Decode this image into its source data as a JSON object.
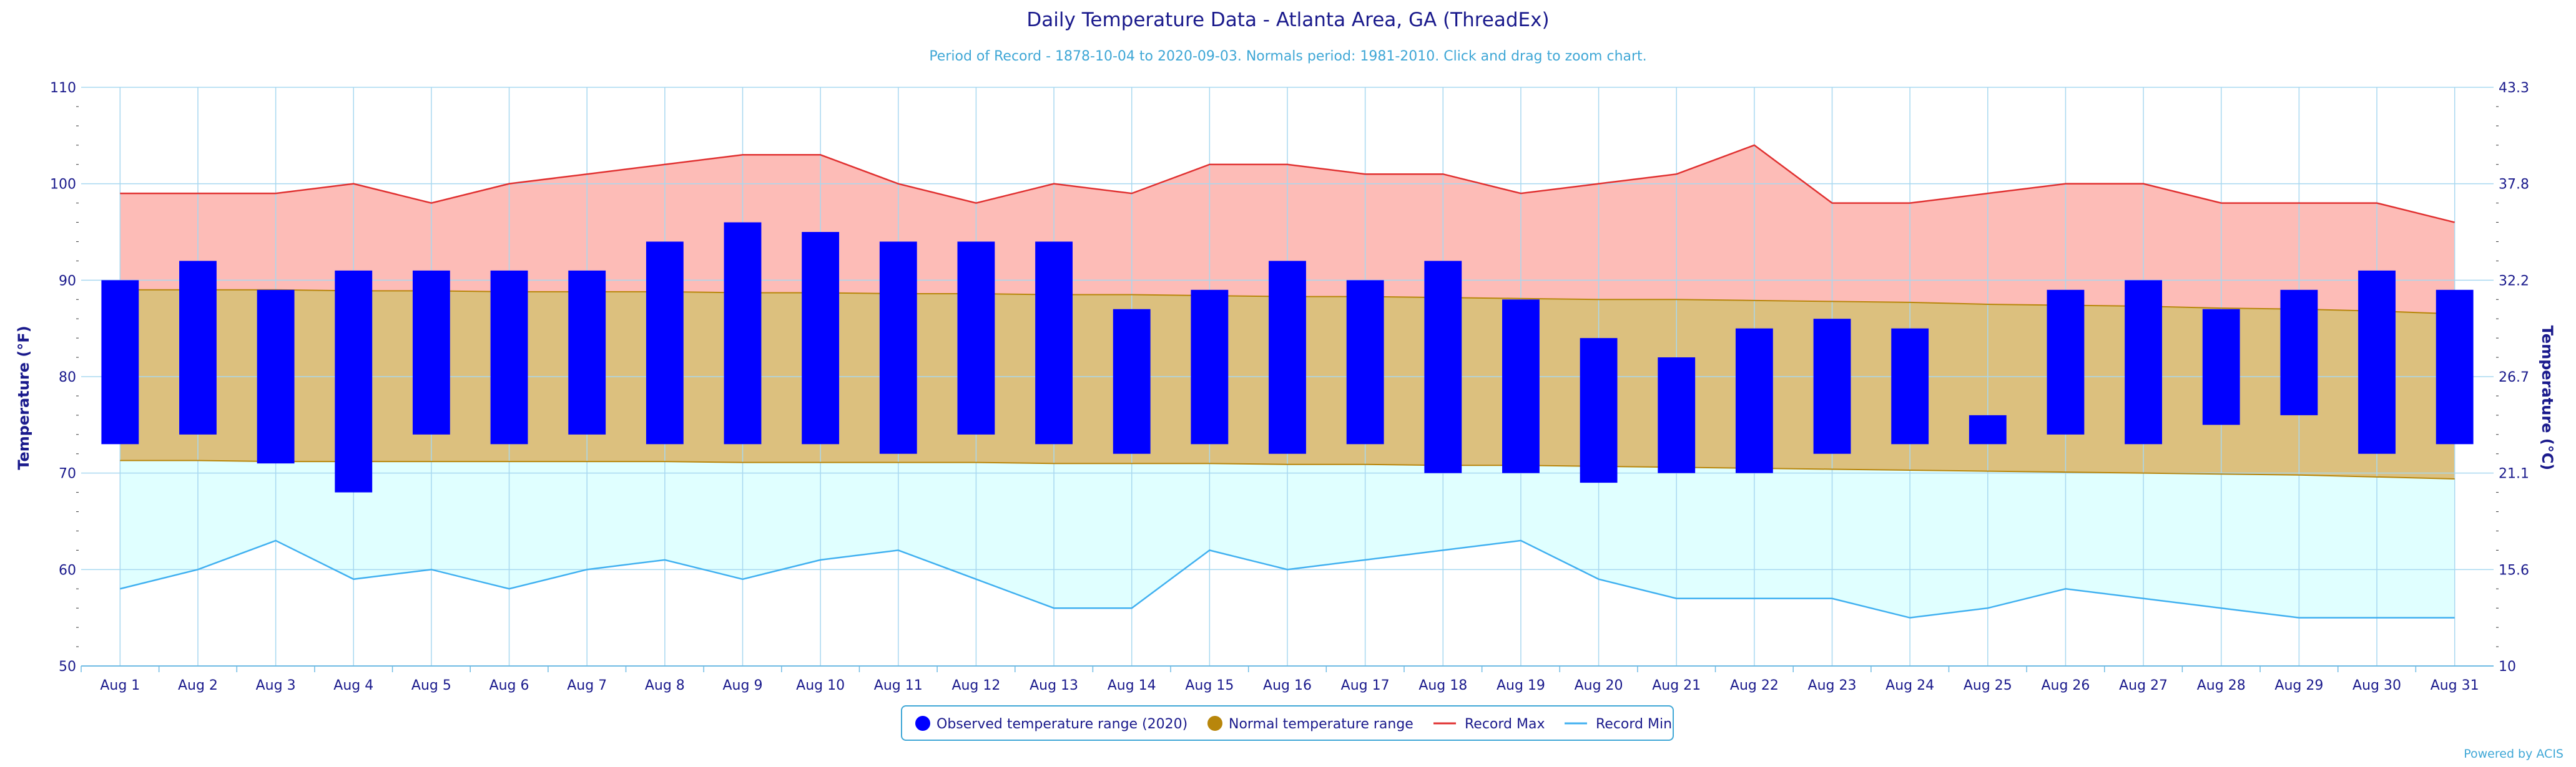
{
  "chart_data": {
    "type": "bar",
    "title": "Daily Temperature Data - Atlanta Area, GA (ThreadEx)",
    "subtitle": "Period of Record - 1878-10-04 to 2020-09-03. Normals period: 1981-2010. Click and drag to zoom chart.",
    "ylabel": "Temperature (°F)",
    "ylabel_right": "Temperature (°C)",
    "ylim": [
      50,
      110
    ],
    "y_ticks": [
      50,
      60,
      70,
      80,
      90,
      100,
      110
    ],
    "y_ticks_right": [
      "10",
      "15.6",
      "21.1",
      "26.7",
      "32.2",
      "37.8",
      "43.3"
    ],
    "grid": true,
    "legend_position": "bottom-center",
    "categories": [
      "Aug 1",
      "Aug 2",
      "Aug 3",
      "Aug 4",
      "Aug 5",
      "Aug 6",
      "Aug 7",
      "Aug 8",
      "Aug 9",
      "Aug 10",
      "Aug 11",
      "Aug 12",
      "Aug 13",
      "Aug 14",
      "Aug 15",
      "Aug 16",
      "Aug 17",
      "Aug 18",
      "Aug 19",
      "Aug 20",
      "Aug 21",
      "Aug 22",
      "Aug 23",
      "Aug 24",
      "Aug 25",
      "Aug 26",
      "Aug 27",
      "Aug 28",
      "Aug 29",
      "Aug 30",
      "Aug 31"
    ],
    "series": [
      {
        "name": "Observed temperature range (2020)",
        "kind": "range-bar",
        "color": "#0000ff",
        "low": [
          73,
          74,
          71,
          68,
          74,
          73,
          74,
          73,
          73,
          73,
          72,
          74,
          73,
          72,
          73,
          72,
          73,
          70,
          70,
          69,
          70,
          70,
          72,
          73,
          73,
          74,
          73,
          75,
          76,
          72,
          73
        ],
        "high": [
          90,
          92,
          89,
          91,
          91,
          91,
          91,
          94,
          96,
          95,
          94,
          94,
          94,
          87,
          89,
          92,
          90,
          92,
          88,
          84,
          82,
          85,
          86,
          85,
          76,
          89,
          90,
          87,
          89,
          91,
          89
        ]
      },
      {
        "name": "Normal temperature range",
        "kind": "range-area",
        "color": "#b8860b",
        "fill": "#dcc07e",
        "low": [
          71.3,
          71.3,
          71.2,
          71.2,
          71.2,
          71.2,
          71.2,
          71.2,
          71.1,
          71.1,
          71.1,
          71.1,
          71,
          71,
          71,
          70.9,
          70.9,
          70.8,
          70.8,
          70.7,
          70.6,
          70.5,
          70.4,
          70.3,
          70.2,
          70.1,
          70,
          69.9,
          69.8,
          69.6,
          69.4
        ],
        "high": [
          89,
          89,
          89,
          88.9,
          88.9,
          88.8,
          88.8,
          88.8,
          88.7,
          88.7,
          88.6,
          88.6,
          88.5,
          88.5,
          88.4,
          88.3,
          88.3,
          88.2,
          88.1,
          88,
          88,
          87.9,
          87.8,
          87.7,
          87.5,
          87.4,
          87.3,
          87.1,
          87,
          86.8,
          86.5
        ]
      },
      {
        "name": "Record Max",
        "kind": "line",
        "color": "#e03030",
        "fill": "#fdbcb7",
        "values": [
          99,
          99,
          99,
          100,
          98,
          100,
          101,
          102,
          103,
          103,
          100,
          98,
          100,
          99,
          102,
          102,
          101,
          101,
          99,
          100,
          101,
          104,
          98,
          98,
          99,
          100,
          100,
          98,
          98,
          98,
          96
        ]
      },
      {
        "name": "Record Min",
        "kind": "line",
        "color": "#40b0f0",
        "fill": "#e0ffff",
        "values": [
          58,
          60,
          63,
          59,
          60,
          58,
          60,
          61,
          59,
          61,
          62,
          59,
          56,
          56,
          62,
          60,
          61,
          62,
          63,
          59,
          57,
          57,
          57,
          55,
          56,
          58,
          57,
          56,
          55,
          55,
          55
        ]
      }
    ]
  },
  "credit": "Powered by ACIS"
}
